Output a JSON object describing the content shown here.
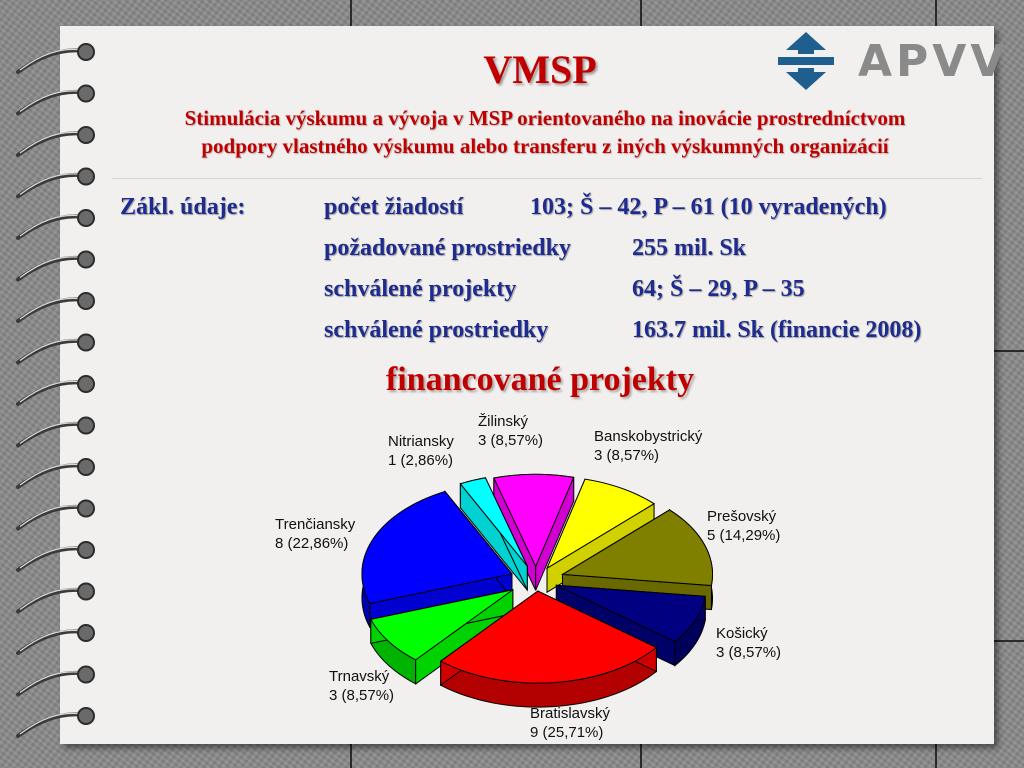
{
  "slide": {
    "title": "VMSP",
    "subtitle_line1": "Stimulácia výskumu a vývoja v MSP orientovaného na inovácie prostredníctvom",
    "subtitle_line2": "podpory vlastného výskumu alebo transferu z iných výskumných organizácií",
    "logo_text": "APVV",
    "basic_label": "Zákl. údaje:",
    "facts": [
      {
        "label": "počet žiadostí",
        "value": "103;  Š – 42, P – 61  (10 vyradených)"
      },
      {
        "label": "požadované prostriedky",
        "value": "255 mil. Sk"
      },
      {
        "label": "schválené projekty",
        "value": "64;  Š – 29, P – 35"
      },
      {
        "label": "schválené prostriedky",
        "value": "163.7 mil. Sk (financie 2008)"
      }
    ],
    "section_title": "financované projekty"
  },
  "colors": {
    "title": "#c00000",
    "info": "#1f2c8f",
    "logo_blue": "#1f5f8f",
    "logo_gray": "#8a8a8a"
  },
  "chart_data": {
    "type": "pie",
    "title": "financované projekty",
    "slices": [
      {
        "name": "Žilinský",
        "count": 3,
        "percent": "8,57%",
        "label": "3 (8,57%)",
        "color": "#ff00ff"
      },
      {
        "name": "Banskobystrický",
        "count": 3,
        "percent": "8,57%",
        "label": "3 (8,57%)",
        "color": "#ffff00"
      },
      {
        "name": "Prešovský",
        "count": 5,
        "percent": "14,29%",
        "label": "5 (14,29%)",
        "color": "#808000"
      },
      {
        "name": "Košický",
        "count": 3,
        "percent": "8,57%",
        "label": "3 (8,57%)",
        "color": "#000080"
      },
      {
        "name": "Bratislavský",
        "count": 9,
        "percent": "25,71%",
        "label": "9 (25,71%)",
        "color": "#ff0000"
      },
      {
        "name": "Trnavský",
        "count": 3,
        "percent": "8,57%",
        "label": "3 (8,57%)",
        "color": "#00ff00"
      },
      {
        "name": "Trenčiansky",
        "count": 8,
        "percent": "22,86%",
        "label": "8 (22,86%)",
        "color": "#0000ff"
      },
      {
        "name": "Nitriansky",
        "count": 1,
        "percent": "2,86%",
        "label": "1 (2,86%)",
        "color": "#00ffff"
      }
    ]
  }
}
